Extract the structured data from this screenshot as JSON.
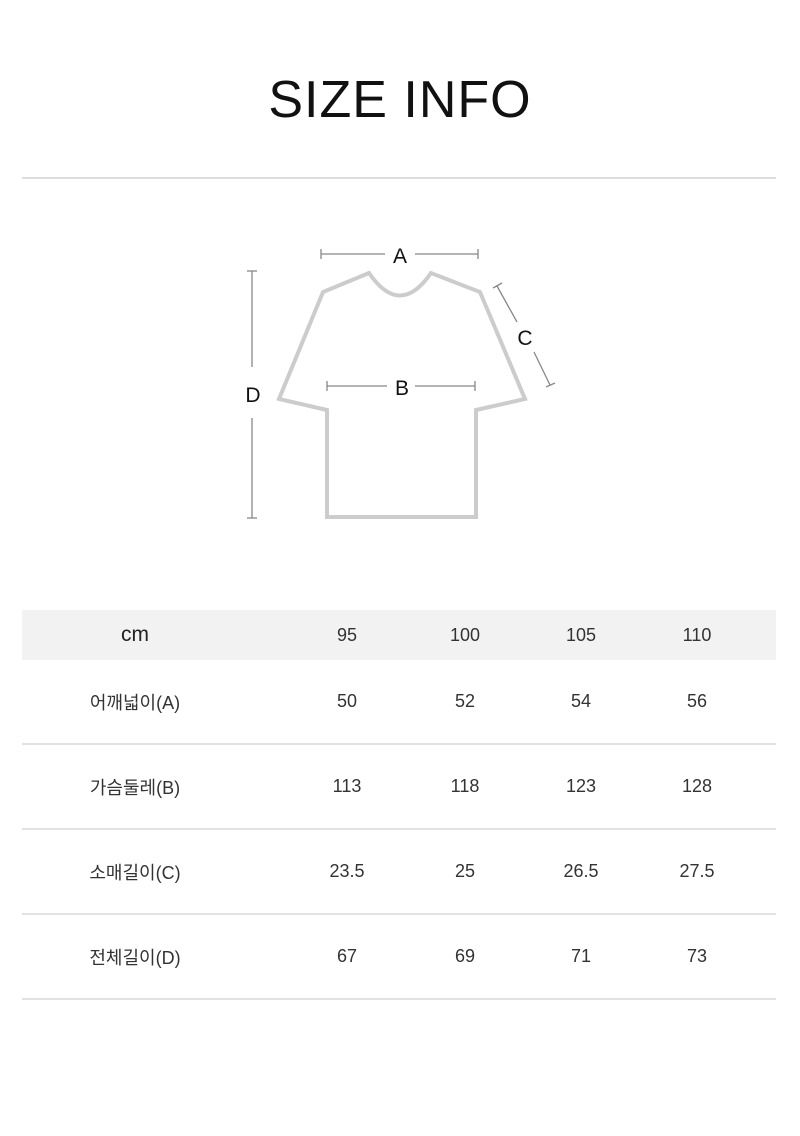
{
  "title": "SIZE INFO",
  "diagram": {
    "labels": {
      "a": "A",
      "b": "B",
      "c": "C",
      "d": "D"
    },
    "outline_color": "#cccccc",
    "line_color": "#888888"
  },
  "table": {
    "header": {
      "label": "cm",
      "sizes": [
        "95",
        "100",
        "105",
        "110"
      ]
    },
    "rows": [
      {
        "label": "어깨넓이(A)",
        "values": [
          "50",
          "52",
          "54",
          "56"
        ]
      },
      {
        "label": "가슴둘레(B)",
        "values": [
          "113",
          "118",
          "123",
          "128"
        ]
      },
      {
        "label": "소매길이(C)",
        "values": [
          "23.5",
          "25",
          "26.5",
          "27.5"
        ]
      },
      {
        "label": "전체길이(D)",
        "values": [
          "67",
          "69",
          "71",
          "73"
        ]
      }
    ],
    "header_bg": "#f2f2f2"
  }
}
